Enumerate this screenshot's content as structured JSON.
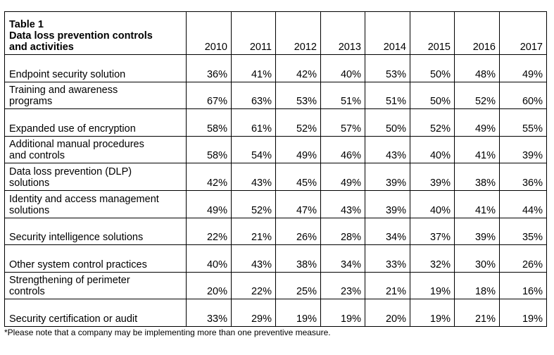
{
  "table": {
    "title_lines": [
      "Table 1",
      "Data loss prevention controls",
      "and activities"
    ],
    "years": [
      "2010",
      "2011",
      "2012",
      "2013",
      "2014",
      "2015",
      "2016",
      "2017"
    ],
    "rows": [
      {
        "label": [
          "Endpoint security solution"
        ],
        "values": [
          "36%",
          "41%",
          "42%",
          "40%",
          "53%",
          "50%",
          "48%",
          "49%"
        ]
      },
      {
        "label": [
          "Training and awareness",
          "programs"
        ],
        "values": [
          "67%",
          "63%",
          "53%",
          "51%",
          "51%",
          "50%",
          "52%",
          "60%"
        ]
      },
      {
        "label": [
          "Expanded use of encryption"
        ],
        "values": [
          "58%",
          "61%",
          "52%",
          "57%",
          "50%",
          "52%",
          "49%",
          "55%"
        ]
      },
      {
        "label": [
          "Additional manual procedures",
          "and controls"
        ],
        "values": [
          "58%",
          "54%",
          "49%",
          "46%",
          "43%",
          "40%",
          "41%",
          "39%"
        ]
      },
      {
        "label": [
          "Data loss prevention (DLP)",
          "solutions"
        ],
        "values": [
          "42%",
          "43%",
          "45%",
          "49%",
          "39%",
          "39%",
          "38%",
          "36%"
        ]
      },
      {
        "label": [
          "Identity and access management",
          "solutions"
        ],
        "values": [
          "49%",
          "52%",
          "47%",
          "43%",
          "39%",
          "40%",
          "41%",
          "44%"
        ]
      },
      {
        "label": [
          "Security intelligence solutions"
        ],
        "values": [
          "22%",
          "21%",
          "26%",
          "28%",
          "34%",
          "37%",
          "39%",
          "35%"
        ]
      },
      {
        "label": [
          "Other system control practices"
        ],
        "values": [
          "40%",
          "43%",
          "38%",
          "34%",
          "33%",
          "32%",
          "30%",
          "26%"
        ]
      },
      {
        "label": [
          "Strengthening of perimeter",
          "controls"
        ],
        "values": [
          "20%",
          "22%",
          "25%",
          "23%",
          "21%",
          "19%",
          "18%",
          "16%"
        ]
      },
      {
        "label": [
          "Security certification or audit"
        ],
        "values": [
          "33%",
          "29%",
          "19%",
          "19%",
          "20%",
          "19%",
          "21%",
          "19%"
        ]
      }
    ]
  },
  "footnote": "*Please note that a company may be implementing more than one preventive measure."
}
